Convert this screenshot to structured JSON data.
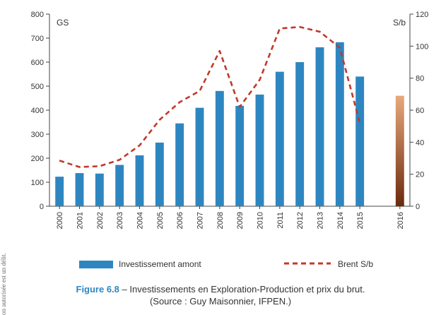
{
  "margin_note": "on autorisée est un délit.",
  "legend": {
    "bars_label": "Investissement amont",
    "line_label": "Brent S/b",
    "bar_color": "#2e86c1",
    "line_color": "#c0392b"
  },
  "caption": {
    "figure_number": "Figure 6.8",
    "title": " – Investissements en Exploration-Production et prix du brut.",
    "source": "(Source : Guy Maisonnier, IFPEN.)"
  },
  "chart_data": {
    "type": "bar",
    "categories": [
      "2000",
      "2001",
      "2002",
      "2003",
      "2004",
      "2005",
      "2006",
      "2007",
      "2008",
      "2009",
      "2010",
      "2011",
      "2012",
      "2013",
      "2014",
      "2015",
      "",
      "2016"
    ],
    "series": [
      {
        "name": "Investissement amont",
        "axis": "left",
        "values": [
          123,
          138,
          136,
          172,
          212,
          265,
          345,
          410,
          480,
          418,
          465,
          560,
          600,
          662,
          683,
          540,
          null,
          460
        ]
      },
      {
        "name": "Brent S/b",
        "type": "line",
        "style": "dashed",
        "axis": "right",
        "values": [
          28.5,
          24.5,
          25,
          29,
          38,
          54,
          65,
          72,
          97,
          62,
          79,
          111,
          112,
          109,
          99,
          52,
          null,
          null
        ]
      }
    ],
    "highlight_2016_bar_colors": [
      "#e8a87c",
      "#6b2a0c"
    ],
    "y_left": {
      "label": "GS",
      "min": 0,
      "max": 800,
      "ticks": [
        0,
        100,
        200,
        300,
        400,
        500,
        600,
        700,
        800
      ]
    },
    "y_right": {
      "label": "S/b",
      "min": 0,
      "max": 120,
      "ticks": [
        0,
        20,
        40,
        60,
        80,
        100,
        120
      ]
    },
    "grid": false
  }
}
